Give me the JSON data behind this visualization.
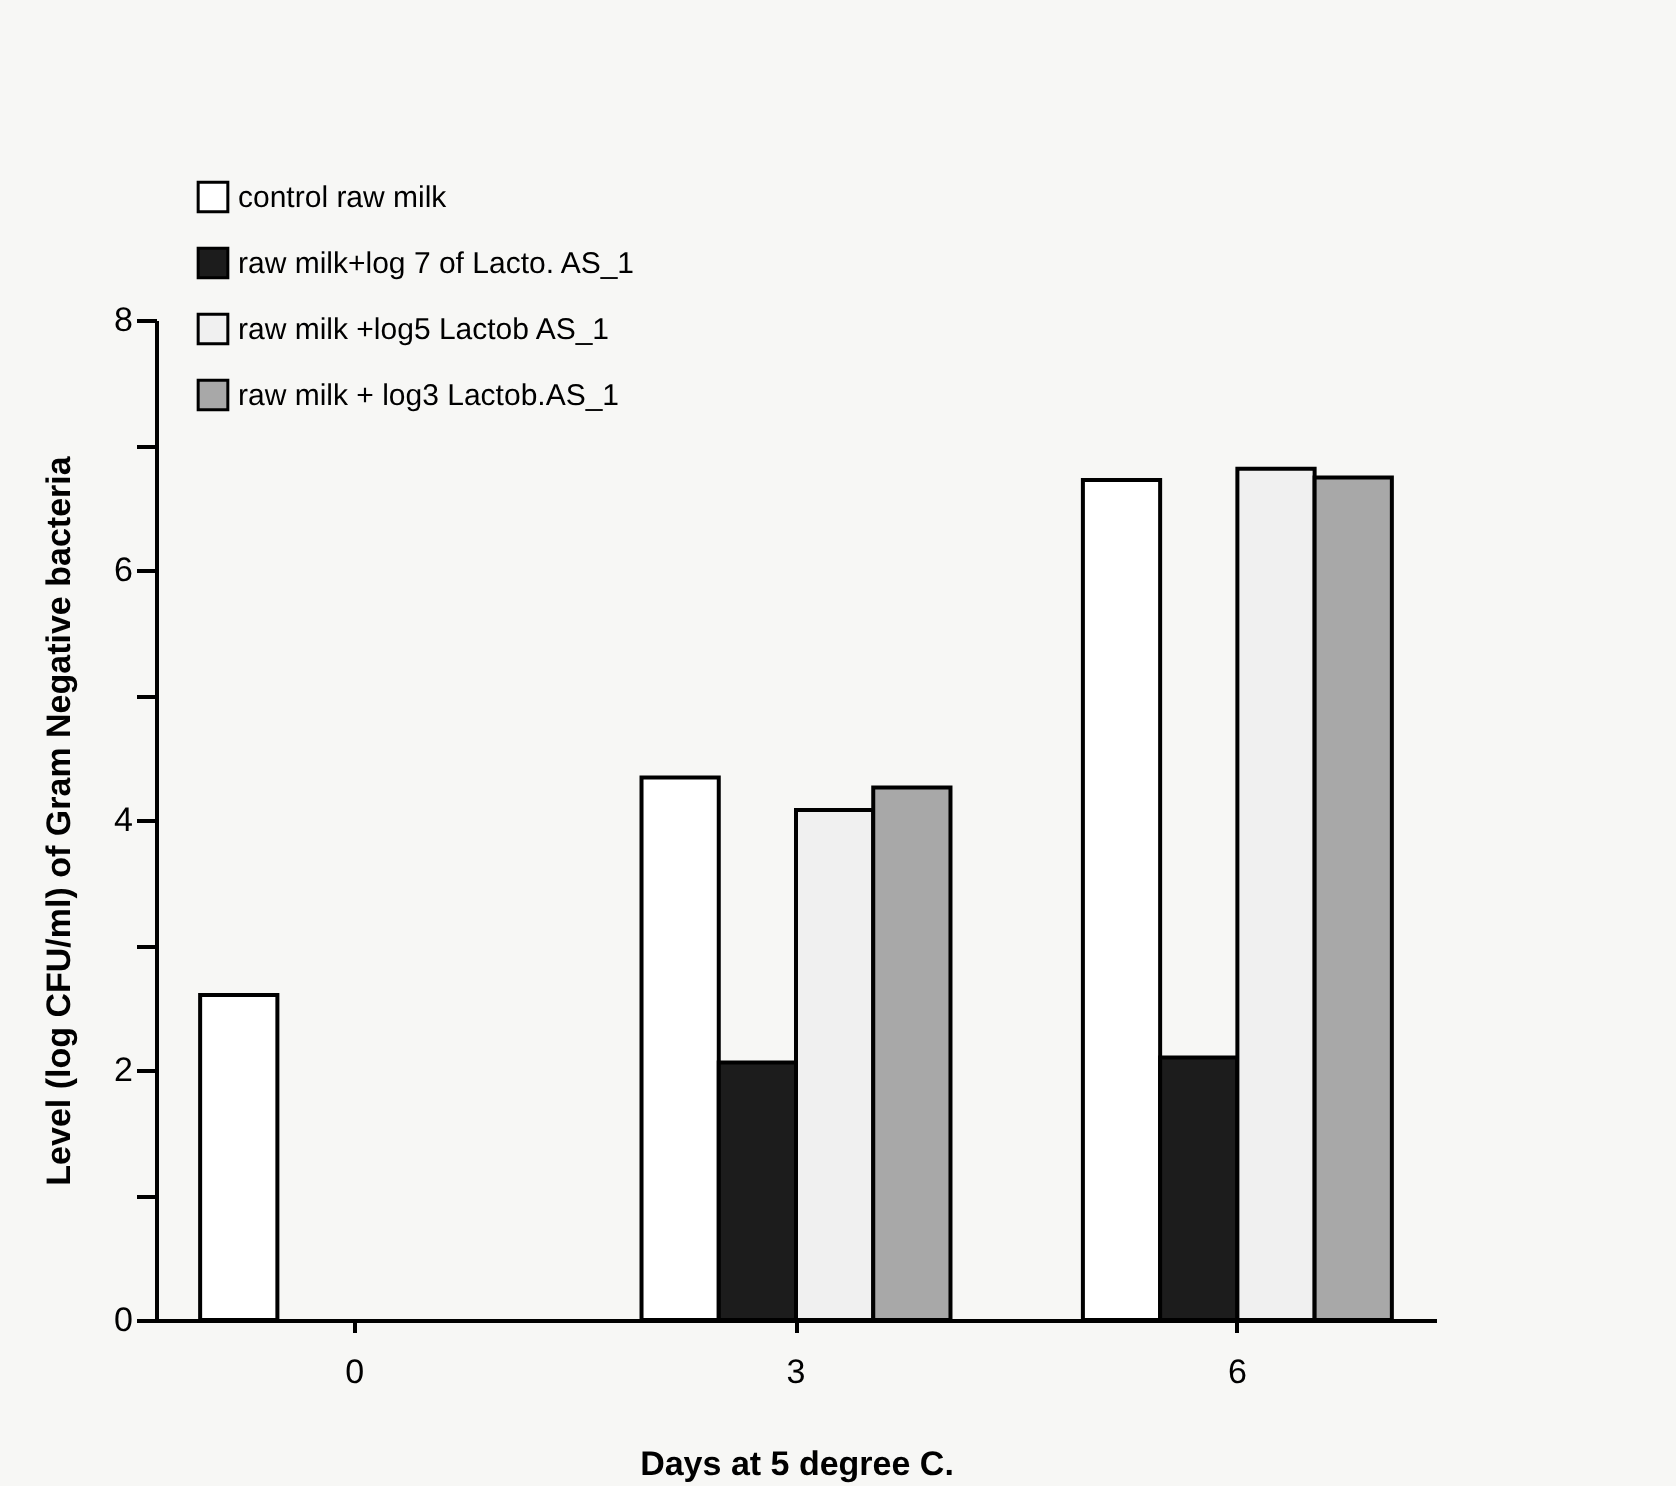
{
  "chart_data": {
    "type": "bar",
    "xlabel": "Days at 5 degree C.",
    "ylabel": "Level (log CFU/ml) of Gram Negative bacteria",
    "categories": [
      "0",
      "3",
      "6"
    ],
    "series": [
      {
        "name": "control raw milk",
        "color": "#ffffff",
        "values": [
          2.6,
          4.34,
          6.72
        ]
      },
      {
        "name": "raw milk+log 7 of Lacto. AS_1",
        "color": "#1c1c1c",
        "values": [
          null,
          2.06,
          2.1
        ]
      },
      {
        "name": "raw milk +log5 Lactob AS_1",
        "color": "#f0f0f0",
        "values": [
          null,
          4.08,
          6.81
        ]
      },
      {
        "name": "raw milk + log3 Lactob.AS_1",
        "color": "#a8a8a8",
        "values": [
          null,
          4.26,
          6.74
        ]
      }
    ],
    "ylim": [
      0,
      8
    ],
    "yticks": [
      0,
      {
        "value": 1,
        "label": null
      },
      2,
      {
        "value": 3,
        "label": null
      },
      4,
      {
        "value": 5,
        "label": null
      },
      6,
      {
        "value": 7,
        "label": null
      },
      8
    ],
    "grid": false,
    "legend": "top left"
  }
}
